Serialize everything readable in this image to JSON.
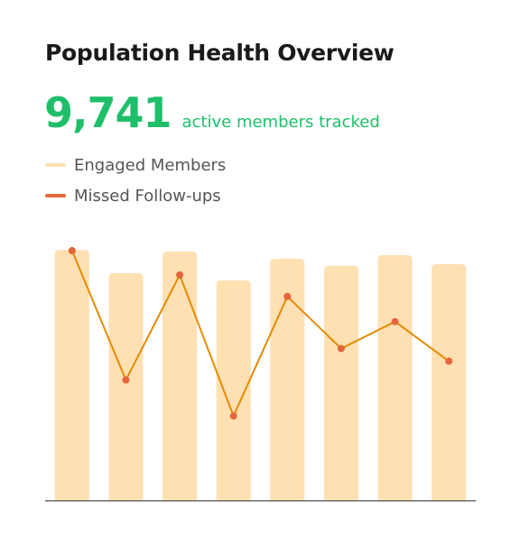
{
  "header": {
    "title": "Population Health Overview",
    "kpi_value": "9,741",
    "kpi_label": "active members tracked"
  },
  "chart_data": {
    "type": "bar",
    "categories": [
      "",
      "",
      "",
      "",
      "",
      "",
      "",
      ""
    ],
    "series": [
      {
        "name": "Engaged Members",
        "type": "bar",
        "color": "#ffe0b3",
        "values": [
          279,
          253,
          277,
          245,
          269,
          261,
          273,
          263
        ]
      },
      {
        "name": "Missed Follow-ups",
        "type": "line",
        "color": "#e68a00",
        "marker_color": "#e5653a",
        "values": [
          278,
          134,
          251,
          94,
          227,
          169,
          199,
          155
        ]
      }
    ],
    "ylim": [
      0,
      280
    ],
    "legend_position": "top-left",
    "grid": false
  }
}
